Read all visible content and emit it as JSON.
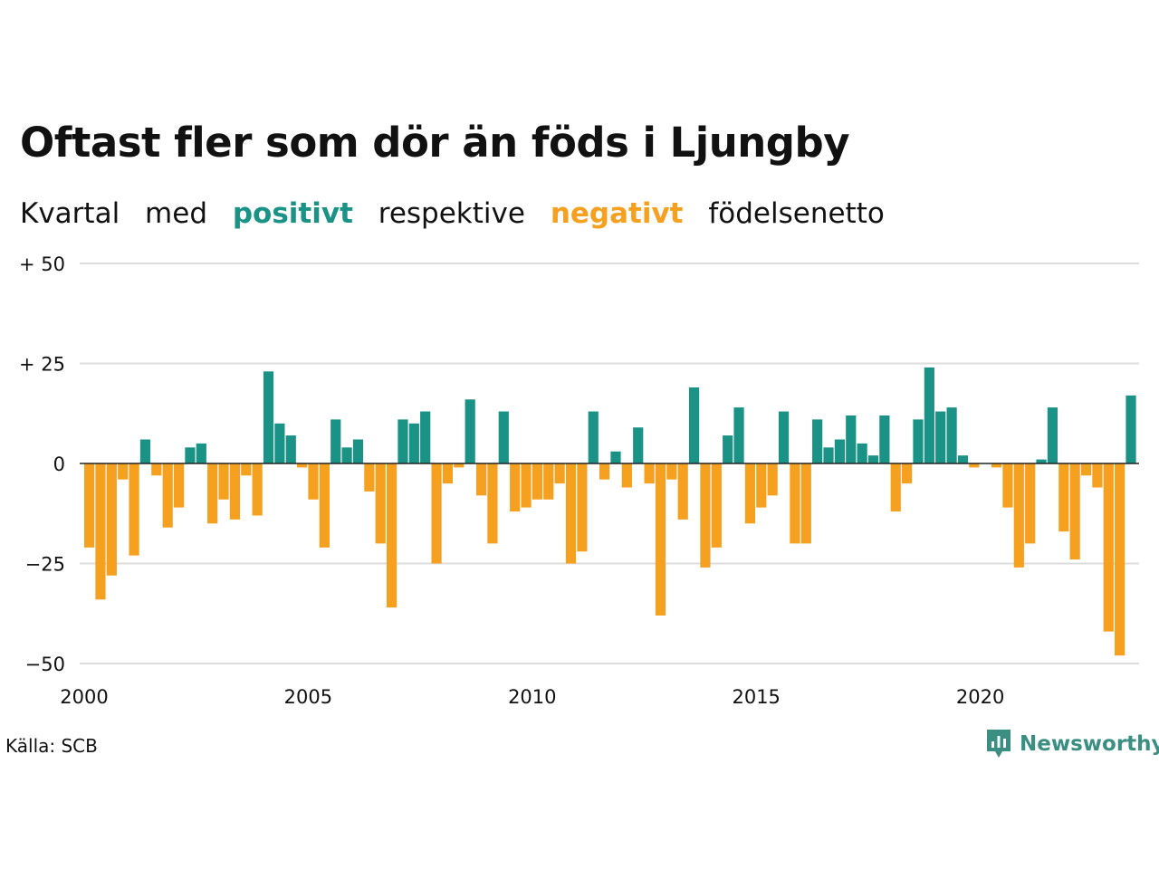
{
  "title": "Oftast fler som dör än föds i Ljungby",
  "subtitle": {
    "w1": "Kvartal",
    "w2": "med",
    "positive_word": "positivt",
    "w3": "respektive",
    "negative_word": "negativt",
    "w4": "födelsenetto"
  },
  "source": "Källa: SCB",
  "brand": "Newsworthy",
  "colors": {
    "positive": "#1a9285",
    "negative": "#f5a01e",
    "grid": "#dddddd",
    "brand": "#3a8f82"
  },
  "chart_data": {
    "type": "bar",
    "title": "Oftast fler som dör än föds i Ljungby",
    "subtitle": "Kvartal med positivt respektive negativt födelsenetto",
    "xlabel": "",
    "ylabel": "",
    "ylim": [
      -52,
      50
    ],
    "yticks": [
      50,
      25,
      0,
      -25,
      -50
    ],
    "ytick_labels": [
      "+ 50",
      "+ 25",
      "0",
      "−25",
      "−50"
    ],
    "xticks": [
      2000,
      2005,
      2010,
      2015,
      2020
    ],
    "xtick_labels": [
      "2000",
      "2005",
      "2010",
      "2015",
      "2020"
    ],
    "grid": true,
    "start": "2000 Q1",
    "frequency": "quarter",
    "values": [
      -21,
      -34,
      -28,
      -4,
      -23,
      6,
      -3,
      -16,
      -11,
      4,
      5,
      -15,
      -9,
      -14,
      -3,
      -13,
      23,
      10,
      7,
      -1,
      -9,
      -21,
      11,
      4,
      6,
      -7,
      -20,
      -36,
      11,
      10,
      13,
      -25,
      -5,
      -1,
      16,
      -8,
      -20,
      13,
      -12,
      -11,
      -9,
      -9,
      -5,
      -25,
      -22,
      13,
      -4,
      3,
      -6,
      9,
      -5,
      -38,
      -4,
      -14,
      19,
      -26,
      -21,
      7,
      14,
      -15,
      -11,
      -8,
      13,
      -20,
      -20,
      11,
      4,
      6,
      12,
      5,
      2,
      12,
      -12,
      -5,
      11,
      24,
      13,
      14,
      2,
      -1,
      0,
      -1,
      -11,
      -26,
      -20,
      1,
      14,
      -17,
      -24,
      -3,
      -6,
      -42,
      -48,
      17
    ]
  }
}
